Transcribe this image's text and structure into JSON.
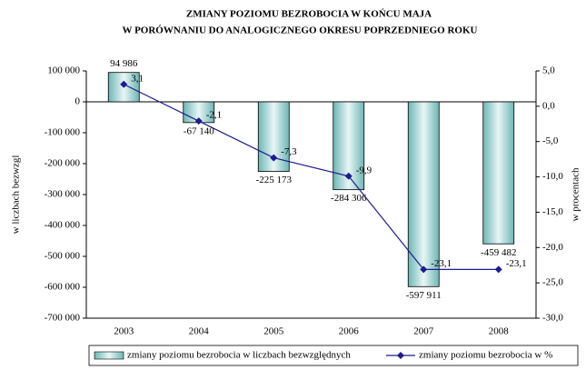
{
  "chart_data": {
    "type": "bar_line",
    "title": "ZMIANY POZIOMU BEZROBOCIA W  KOŃCU MAJA",
    "subtitle": "W  PORÓWNANIU DO ANALOGICZNEGO OKRESU POPRZEDNIEGO  ROKU",
    "ylabel": "w liczbach bezwzgl",
    "y2label": "w procentach",
    "categories": [
      "2003",
      "2004",
      "2005",
      "2006",
      "2007",
      "2008"
    ],
    "series": [
      {
        "name": "zmiany poziomu bezrobocia w liczbach bezwzględnych",
        "type": "bar",
        "color": "#6fb5b5",
        "values": [
          94986,
          -67140,
          -225173,
          -284306,
          -597911,
          -459482
        ],
        "value_labels": [
          "94 986",
          "-67 140",
          "-225 173",
          "-284 306",
          "-597 911",
          "-459 482"
        ]
      },
      {
        "name": "zmiany poziomu bezrobocia w %",
        "type": "line",
        "axis": "y2",
        "color": "#1c1c8c",
        "values": [
          3.1,
          -2.1,
          -7.3,
          -9.9,
          -23.1,
          -23.1
        ],
        "value_labels": [
          "3,1",
          "-2,1",
          "-7,3",
          "-9,9",
          "-23,1",
          "-23,1"
        ]
      }
    ],
    "ylim": [
      -700000,
      100000
    ],
    "yticks": [
      {
        "value": 100000,
        "label": "100 000"
      },
      0,
      {
        "value": -100000,
        "label": "-100 000"
      },
      {
        "value": -200000,
        "label": "-200 000"
      },
      {
        "value": -300000,
        "label": "-300 000"
      },
      {
        "value": -400000,
        "label": "-400 000"
      },
      {
        "value": -500000,
        "label": "-500 000"
      },
      {
        "value": -600000,
        "label": "-600 000"
      },
      {
        "value": -700000,
        "label": "-700 000"
      }
    ],
    "y2lim": [
      -30,
      5
    ],
    "y2ticks": [
      {
        "value": 5,
        "label": "5,0"
      },
      {
        "value": 0,
        "label": "0,0"
      },
      {
        "value": -5,
        "label": "-5,0"
      },
      {
        "value": -10,
        "label": "-10,0"
      },
      {
        "value": -15,
        "label": "-15,0"
      },
      {
        "value": -20,
        "label": "-20,0"
      },
      {
        "value": -25,
        "label": "-25,0"
      },
      {
        "value": -30,
        "label": "-30,0"
      }
    ],
    "legend": "bottom"
  }
}
